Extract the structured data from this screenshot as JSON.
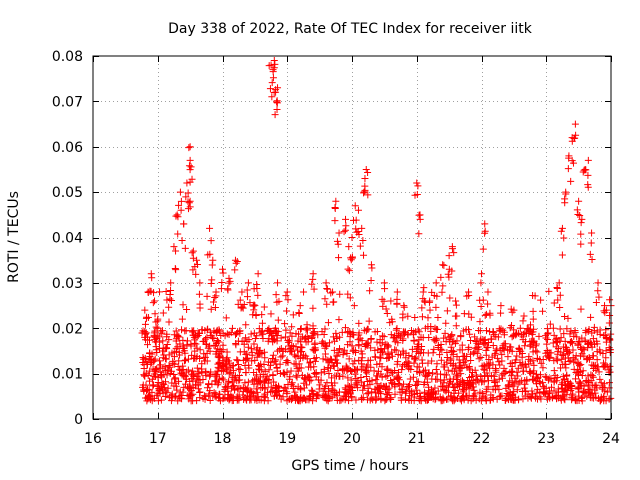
{
  "chart_data": {
    "type": "scatter",
    "title": "Day 338 of 2022, Rate Of TEC Index for receiver iitk",
    "xlabel": "GPS time / hours",
    "ylabel": "ROTI / TECUs",
    "xlim": [
      16,
      24
    ],
    "ylim": [
      0,
      0.08
    ],
    "x_ticks": [
      16,
      17,
      18,
      19,
      20,
      21,
      22,
      23,
      24
    ],
    "x_tick_labels": [
      "16",
      "17",
      "18",
      "19",
      "20",
      "21",
      "22",
      "23",
      "24"
    ],
    "y_ticks": [
      0,
      0.01,
      0.02,
      0.03,
      0.04,
      0.05,
      0.06,
      0.07,
      0.08
    ],
    "y_tick_labels": [
      "0",
      "0.01",
      "0.02",
      "0.03",
      "0.04",
      "0.05",
      "0.06",
      "0.07",
      "0.08"
    ],
    "grid": true,
    "marker": "plus",
    "color": "#ff0000",
    "series": [
      {
        "name": "ROTI",
        "background": {
          "x_start": 16.75,
          "x_end": 24.0,
          "base_min": 0.004,
          "base_max": 0.02,
          "count": 2200
        },
        "x": [
          16.8,
          16.85,
          16.9,
          16.95,
          17.0,
          17.2,
          17.25,
          17.3,
          17.35,
          17.4,
          17.45,
          17.5,
          17.5,
          17.5,
          17.55,
          17.6,
          17.65,
          17.8,
          17.85,
          17.9,
          18.0,
          18.1,
          18.2,
          18.3,
          18.4,
          18.5,
          18.55,
          18.75,
          18.78,
          18.8,
          18.82,
          18.85,
          18.85,
          19.0,
          19.2,
          19.4,
          19.6,
          19.7,
          19.75,
          19.8,
          19.9,
          19.95,
          20.0,
          20.05,
          20.1,
          20.15,
          20.2,
          20.22,
          20.3,
          20.5,
          20.6,
          20.7,
          20.8,
          21.0,
          21.05,
          21.1,
          21.2,
          21.3,
          21.4,
          21.5,
          21.55,
          21.6,
          21.8,
          22.0,
          22.05,
          22.1,
          22.3,
          22.5,
          22.6,
          22.8,
          23.2,
          23.25,
          23.3,
          23.35,
          23.4,
          23.45,
          23.5,
          23.55,
          23.6,
          23.65,
          23.7,
          23.8,
          23.9,
          24.0
        ],
        "y": [
          0.024,
          0.028,
          0.032,
          0.026,
          0.022,
          0.03,
          0.038,
          0.045,
          0.05,
          0.043,
          0.052,
          0.057,
          0.06,
          0.048,
          0.037,
          0.035,
          0.03,
          0.042,
          0.035,
          0.028,
          0.033,
          0.031,
          0.035,
          0.028,
          0.03,
          0.025,
          0.032,
          0.078,
          0.077,
          0.079,
          0.072,
          0.073,
          0.03,
          0.028,
          0.025,
          0.032,
          0.03,
          0.028,
          0.048,
          0.041,
          0.044,
          0.038,
          0.04,
          0.047,
          0.046,
          0.042,
          0.053,
          0.055,
          0.034,
          0.03,
          0.026,
          0.028,
          0.025,
          0.052,
          0.045,
          0.028,
          0.026,
          0.03,
          0.034,
          0.036,
          0.038,
          0.026,
          0.028,
          0.032,
          0.043,
          0.028,
          0.025,
          0.024,
          0.02,
          0.022,
          0.03,
          0.042,
          0.05,
          0.058,
          0.062,
          0.065,
          0.048,
          0.044,
          0.055,
          0.057,
          0.041,
          0.03,
          0.025,
          0.025
        ]
      }
    ]
  }
}
